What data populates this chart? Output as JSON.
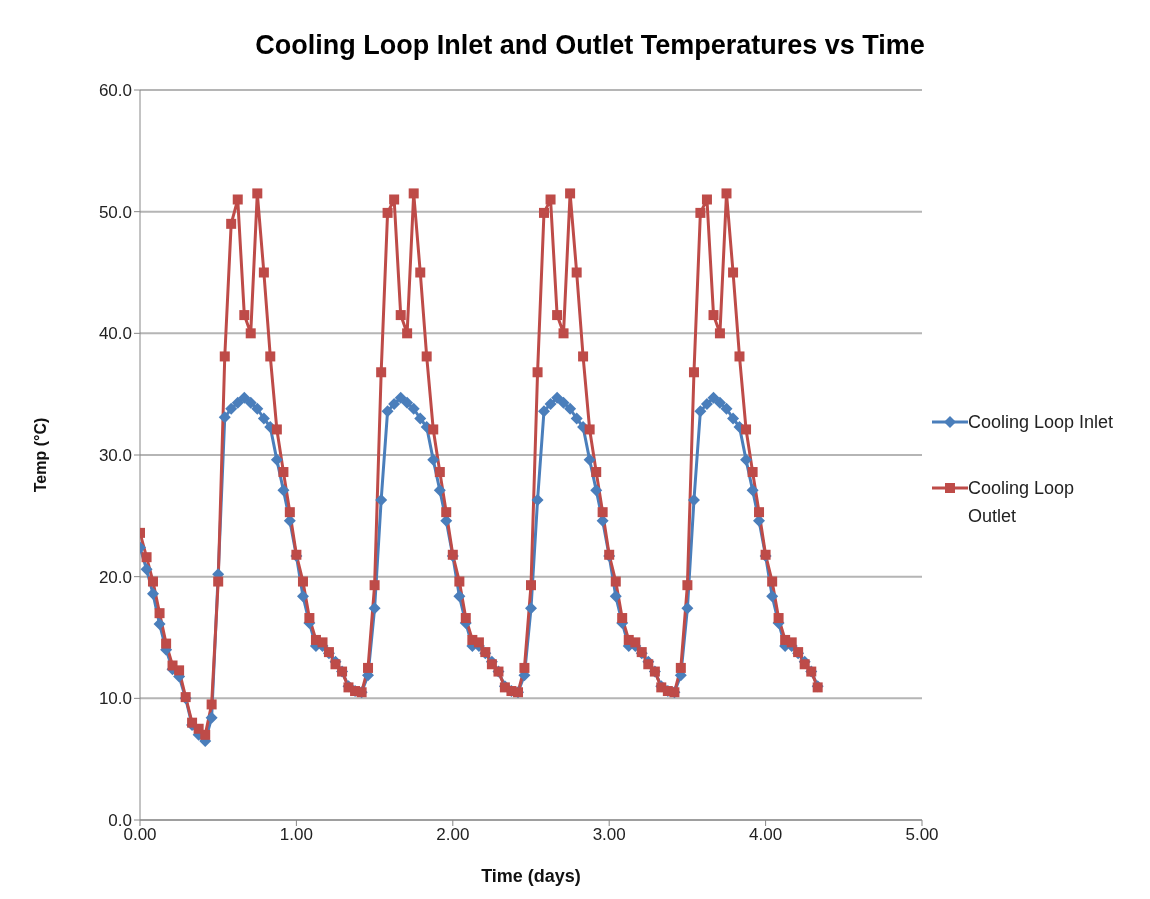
{
  "chart_data": {
    "type": "line",
    "title": "Cooling Loop Inlet and Outlet Temperatures vs Time",
    "xlabel": "Time (days)",
    "ylabel": "Temp (°C)",
    "x": [
      0,
      0.042,
      0.083,
      0.125,
      0.167,
      0.208,
      0.25,
      0.292,
      0.333,
      0.375,
      0.417,
      0.458,
      0.5,
      0.542,
      0.583,
      0.625,
      0.667,
      0.708,
      0.75,
      0.792,
      0.833,
      0.875,
      0.917,
      0.958,
      1,
      1.042,
      1.083,
      1.125,
      1.167,
      1.208,
      1.25,
      1.292,
      1.333,
      1.375,
      1.417,
      1.458,
      1.5,
      1.542,
      1.583,
      1.625,
      1.667,
      1.708,
      1.75,
      1.792,
      1.833,
      1.875,
      1.917,
      1.958,
      2,
      2.042,
      2.083,
      2.125,
      2.167,
      2.208,
      2.25,
      2.292,
      2.333,
      2.375,
      2.417,
      2.458,
      2.5,
      2.542,
      2.583,
      2.625,
      2.667,
      2.708,
      2.75,
      2.792,
      2.833,
      2.875,
      2.917,
      2.958,
      3,
      3.042,
      3.083,
      3.125,
      3.167,
      3.208,
      3.25,
      3.292,
      3.333,
      3.375,
      3.417,
      3.458,
      3.5,
      3.542,
      3.583,
      3.625,
      3.667,
      3.708,
      3.75,
      3.792,
      3.833,
      3.875,
      3.917,
      3.958,
      4,
      4.042,
      4.083,
      4.125,
      4.167,
      4.208,
      4.25,
      4.292,
      4.333
    ],
    "series": [
      {
        "name": "Cooling Loop Inlet",
        "color": "#4a7ebb",
        "marker": "diamond",
        "values": [
          22.4,
          20.6,
          18.6,
          16.1,
          14.0,
          12.4,
          11.8,
          10.0,
          7.8,
          7.0,
          6.5,
          8.4,
          20.2,
          33.1,
          33.8,
          34.3,
          34.7,
          34.3,
          33.8,
          33.0,
          32.3,
          29.6,
          27.1,
          24.6,
          21.7,
          18.4,
          16.2,
          14.3,
          14.3,
          13.7,
          13.0,
          12.2,
          11.0,
          10.6,
          10.5,
          11.9,
          17.4,
          26.3,
          33.6,
          34.2,
          34.7,
          34.3,
          33.8,
          33.0,
          32.3,
          29.6,
          27.1,
          24.6,
          21.7,
          18.4,
          16.2,
          14.3,
          14.3,
          13.7,
          13.0,
          12.2,
          11.0,
          10.6,
          10.5,
          11.9,
          17.4,
          26.3,
          33.6,
          34.2,
          34.7,
          34.3,
          33.8,
          33.0,
          32.3,
          29.6,
          27.1,
          24.6,
          21.7,
          18.4,
          16.2,
          14.3,
          14.3,
          13.7,
          13.0,
          12.2,
          11.0,
          10.6,
          10.5,
          11.9,
          17.4,
          26.3,
          33.6,
          34.2,
          34.7,
          34.3,
          33.8,
          33.0,
          32.3,
          29.6,
          27.1,
          24.6,
          21.7,
          18.4,
          16.2,
          14.3,
          14.3,
          13.7,
          13.0,
          12.2,
          11.0
        ]
      },
      {
        "name": "Cooling Loop Outlet",
        "color": "#be4b48",
        "marker": "square",
        "values": [
          23.6,
          21.6,
          19.6,
          17.0,
          14.5,
          12.7,
          12.3,
          10.1,
          8.0,
          7.5,
          7.0,
          9.5,
          19.6,
          38.1,
          49.0,
          51.0,
          41.5,
          40.0,
          51.5,
          45.0,
          38.1,
          32.1,
          28.6,
          25.3,
          21.8,
          19.6,
          16.6,
          14.8,
          14.6,
          13.8,
          12.8,
          12.2,
          10.9,
          10.6,
          10.5,
          12.5,
          19.3,
          36.8,
          49.9,
          51.0,
          41.5,
          40.0,
          51.5,
          45.0,
          38.1,
          32.1,
          28.6,
          25.3,
          21.8,
          19.6,
          16.6,
          14.8,
          14.6,
          13.8,
          12.8,
          12.2,
          10.9,
          10.6,
          10.5,
          12.5,
          19.3,
          36.8,
          49.9,
          51.0,
          41.5,
          40.0,
          51.5,
          45.0,
          38.1,
          32.1,
          28.6,
          25.3,
          21.8,
          19.6,
          16.6,
          14.8,
          14.6,
          13.8,
          12.8,
          12.2,
          10.9,
          10.6,
          10.5,
          12.5,
          19.3,
          36.8,
          49.9,
          51.0,
          41.5,
          40.0,
          51.5,
          45.0,
          38.1,
          32.1,
          28.6,
          25.3,
          21.8,
          19.6,
          16.6,
          14.8,
          14.6,
          13.8,
          12.8,
          12.2,
          10.9
        ]
      }
    ],
    "xlim": [
      0,
      5
    ],
    "xticks": [
      {
        "value": 0,
        "label": "0.00"
      },
      {
        "value": 1,
        "label": "1.00"
      },
      {
        "value": 2,
        "label": "2.00"
      },
      {
        "value": 3,
        "label": "3.00"
      },
      {
        "value": 4,
        "label": "4.00"
      },
      {
        "value": 5,
        "label": "5.00"
      }
    ],
    "ylim": [
      0,
      60
    ],
    "yticks": [
      {
        "value": 0,
        "label": "0.0"
      },
      {
        "value": 10,
        "label": "10.0"
      },
      {
        "value": 20,
        "label": "20.0"
      },
      {
        "value": 30,
        "label": "30.0"
      },
      {
        "value": 40,
        "label": "40.0"
      },
      {
        "value": 50,
        "label": "50.0"
      },
      {
        "value": 60,
        "label": "60.0"
      }
    ],
    "grid": "y",
    "legend": "right"
  }
}
